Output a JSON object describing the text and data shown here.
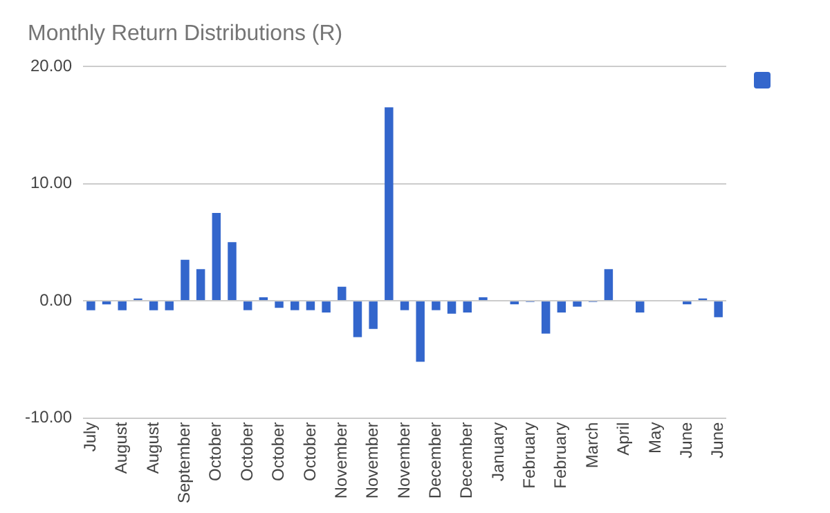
{
  "chart_data": {
    "type": "bar",
    "title": "Monthly Return Distributions (R)",
    "categories": [
      "July",
      null,
      "August",
      null,
      "August",
      null,
      "September",
      null,
      "October",
      null,
      "October",
      null,
      "October",
      null,
      "October",
      null,
      "November",
      null,
      "November",
      null,
      "November",
      null,
      "December",
      null,
      "December",
      null,
      "January",
      null,
      "February",
      null,
      "February",
      null,
      "March",
      null,
      "April",
      null,
      "May",
      null,
      "June",
      null,
      "June"
    ],
    "series": [
      {
        "color": "#3366cc",
        "values": [
          -0.8,
          -0.3,
          -0.8,
          0.2,
          -0.8,
          -0.8,
          3.5,
          2.7,
          7.5,
          5.0,
          -0.8,
          0.3,
          -0.6,
          -0.8,
          -0.8,
          -1.0,
          1.2,
          -3.1,
          -2.4,
          16.5,
          -0.8,
          -5.2,
          -0.8,
          -1.1,
          -1.0,
          0.3,
          0,
          -0.3,
          -0.1,
          -2.8,
          -1.0,
          -0.5,
          -0.1,
          2.7,
          0,
          -1.0,
          0,
          0,
          -0.3,
          0.2,
          -1.4
        ]
      }
    ],
    "ylim": [
      -10,
      20
    ],
    "yticks": [
      {
        "value": -10,
        "label": "-10.00"
      },
      {
        "value": 0,
        "label": "0.00"
      },
      {
        "value": 10,
        "label": "10.00"
      },
      {
        "value": 20,
        "label": "20.00"
      }
    ],
    "grid": "y"
  }
}
